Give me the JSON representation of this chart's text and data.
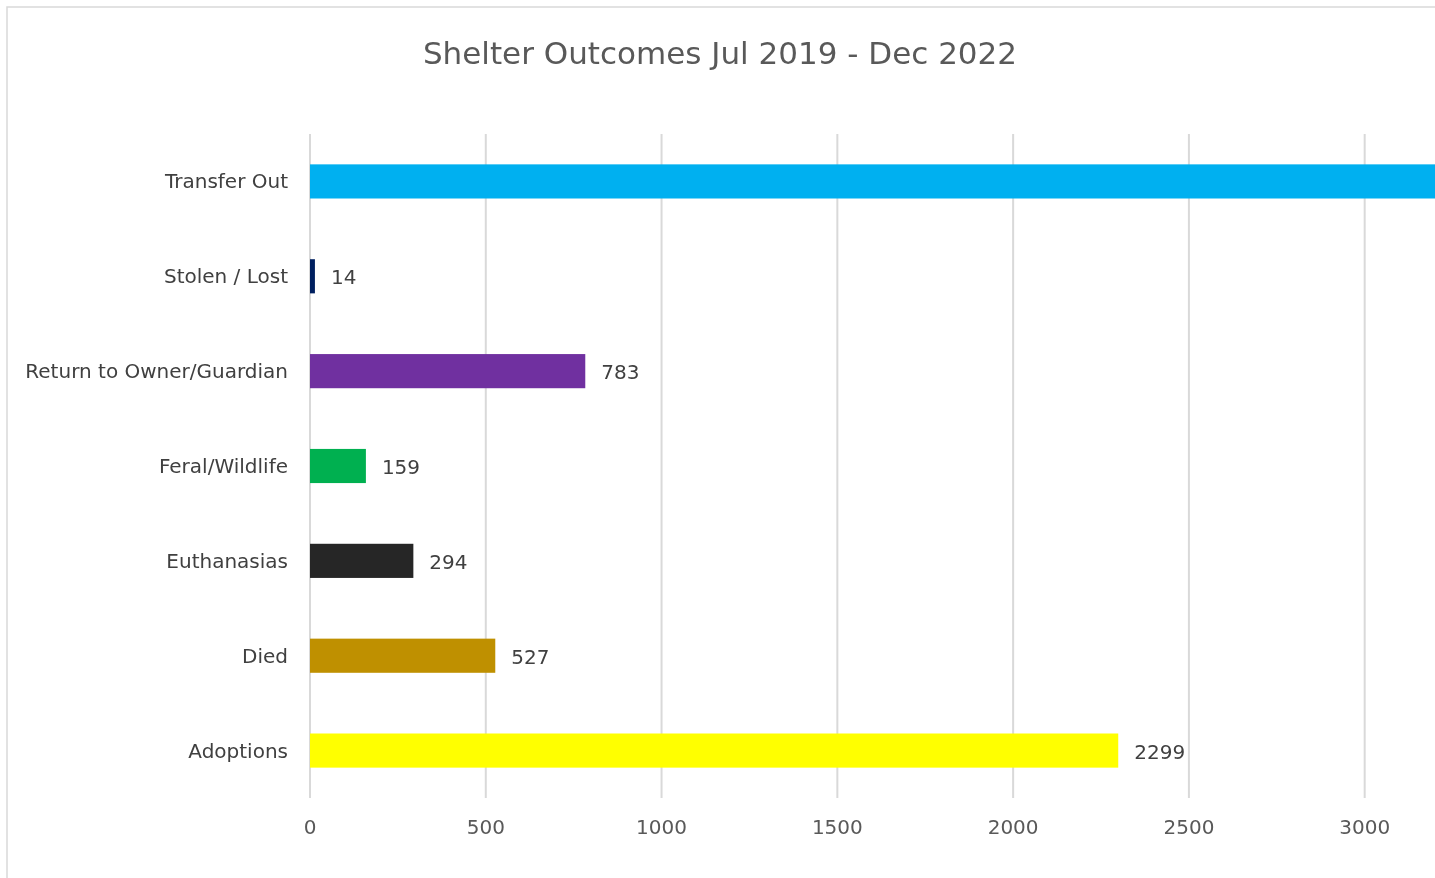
{
  "chart_data": {
    "type": "bar",
    "orientation": "horizontal",
    "title": "Shelter Outcomes Jul 2019 - Dec 2022",
    "categories": [
      "Transfer Out",
      "Stolen / Lost",
      "Return to Owner/Guardian",
      "Feral/Wildlife",
      "Euthanasias",
      "Died",
      "Adoptions"
    ],
    "values": [
      3200,
      14,
      783,
      159,
      294,
      527,
      2299
    ],
    "colors": [
      "#00b0f0",
      "#002060",
      "#7030a0",
      "#00b050",
      "#262626",
      "#bf9000",
      "#ffff00"
    ],
    "value_labels": [
      null,
      "14",
      "783",
      "159",
      "294",
      "527",
      "2299"
    ],
    "xlim": [
      0,
      3200
    ],
    "xticks": [
      0,
      500,
      1000,
      1500,
      2000,
      2500,
      3000
    ],
    "grid": "x"
  }
}
